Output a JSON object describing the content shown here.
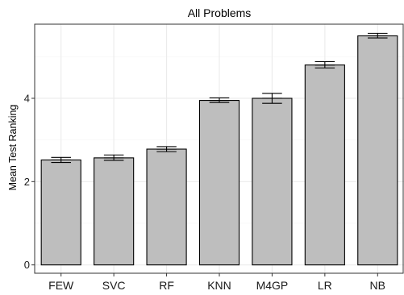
{
  "chart_data": {
    "type": "bar",
    "title": "All Problems",
    "xlabel": "",
    "ylabel": "Mean Test Ranking",
    "categories": [
      "FEW",
      "SVC",
      "RF",
      "KNN",
      "M4GP",
      "LR",
      "NB"
    ],
    "values": [
      2.52,
      2.57,
      2.78,
      3.95,
      4.0,
      4.8,
      5.5
    ],
    "error_low": [
      2.46,
      2.51,
      2.72,
      3.9,
      3.88,
      4.73,
      5.45
    ],
    "error_high": [
      2.58,
      2.64,
      2.84,
      4.01,
      4.12,
      4.88,
      5.56
    ],
    "ylim": [
      -0.2,
      5.78
    ],
    "yticks": [
      0,
      2,
      4
    ],
    "grid": true,
    "legend": "none",
    "colors": {
      "bar_fill": "#bebebe",
      "bar_stroke": "#000000",
      "grid_major": "#ebebeb",
      "grid_minor": "#f5f5f5",
      "panel_border": "#333333"
    }
  }
}
